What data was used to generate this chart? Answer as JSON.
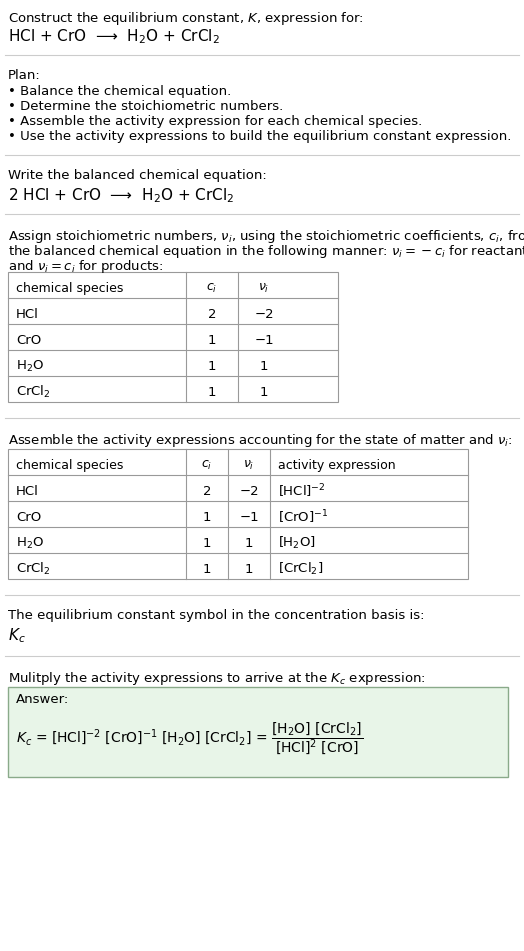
{
  "title_line1": "Construct the equilibrium constant, $K$, expression for:",
  "title_line2": "HCl + CrO  ⟶  H$_2$O + CrCl$_2$",
  "plan_header": "Plan:",
  "plan_items": [
    "• Balance the chemical equation.",
    "• Determine the stoichiometric numbers.",
    "• Assemble the activity expression for each chemical species.",
    "• Use the activity expressions to build the equilibrium constant expression."
  ],
  "balanced_header": "Write the balanced chemical equation:",
  "balanced_eq": "2 HCl + CrO  ⟶  H$_2$O + CrCl$_2$",
  "stoich_header1": "Assign stoichiometric numbers, $\\nu_i$, using the stoichiometric coefficients, $c_i$, from",
  "stoich_header2": "the balanced chemical equation in the following manner: $\\nu_i = -c_i$ for reactants",
  "stoich_header3": "and $\\nu_i = c_i$ for products:",
  "table1_cols": [
    "chemical species",
    "$c_i$",
    "$\\nu_i$"
  ],
  "table1_data": [
    [
      "HCl",
      "2",
      "−2"
    ],
    [
      "CrO",
      "1",
      "−1"
    ],
    [
      "H$_2$O",
      "1",
      "1"
    ],
    [
      "CrCl$_2$",
      "1",
      "1"
    ]
  ],
  "activity_header": "Assemble the activity expressions accounting for the state of matter and $\\nu_i$:",
  "table2_cols": [
    "chemical species",
    "$c_i$",
    "$\\nu_i$",
    "activity expression"
  ],
  "table2_data": [
    [
      "HCl",
      "2",
      "−2",
      "[HCl]$^{-2}$"
    ],
    [
      "CrO",
      "1",
      "−1",
      "[CrO]$^{-1}$"
    ],
    [
      "H$_2$O",
      "1",
      "1",
      "[H$_2$O]"
    ],
    [
      "CrCl$_2$",
      "1",
      "1",
      "[CrCl$_2$]"
    ]
  ],
  "kc_header": "The equilibrium constant symbol in the concentration basis is:",
  "kc_symbol": "$K_c$",
  "multiply_header": "Mulitply the activity expressions to arrive at the $K_c$ expression:",
  "answer_label": "Answer:",
  "bg_color": "#ffffff",
  "text_color": "#000000",
  "line_color": "#cccccc",
  "table_border_color": "#999999",
  "answer_box_bg": "#e8f5e8",
  "answer_box_border": "#8aaa8a",
  "font_size": 9.5,
  "small_font": 9.0,
  "large_font": 11.0
}
